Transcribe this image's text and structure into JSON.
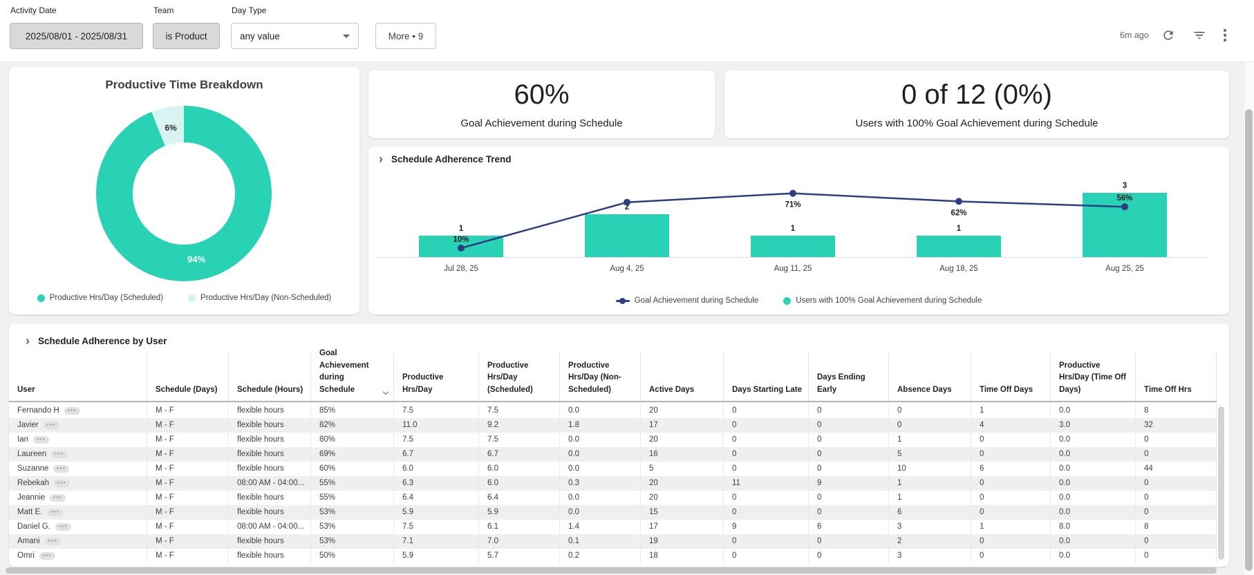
{
  "filter_bar": {
    "filters": [
      {
        "label": "Activity Date",
        "value": "2025/08/01 - 2025/08/31"
      },
      {
        "label": "Team",
        "value": "is Product"
      },
      {
        "label": "Day Type",
        "value": "any value"
      }
    ],
    "more_label": "More • 9",
    "last_updated": "6m ago",
    "icons": {
      "refresh": "refresh-icon",
      "filter": "filter-list-icon",
      "menu": "kebab-menu-icon"
    }
  },
  "donut": {
    "title": "Productive Time Breakdown",
    "labels": {
      "big": "94%",
      "small": "6%"
    },
    "legend": [
      "Productive Hrs/Day (Scheduled)",
      "Productive Hrs/Day (Non-Scheduled)"
    ]
  },
  "kpis": [
    {
      "value": "60%",
      "label": "Goal Achievement during Schedule"
    },
    {
      "value": "0 of 12 (0%)",
      "label": "Users with 100% Goal Achievement during Schedule"
    }
  ],
  "trend": {
    "title": "Schedule Adherence Trend",
    "legend": [
      {
        "name": "Goal Achievement during Schedule",
        "type": "line",
        "color": "#2c3e83"
      },
      {
        "name": "Users with 100% Goal Achievement during Schedule",
        "type": "bar",
        "color": "#29d2b4"
      }
    ]
  },
  "table": {
    "title": "Schedule Adherence by User",
    "columns": [
      {
        "label": "User"
      },
      {
        "label": "Schedule (Days)"
      },
      {
        "label": "Schedule (Hours)"
      },
      {
        "label": "Goal Achievement during Schedule",
        "sort": "desc"
      },
      {
        "label": "Productive Hrs/Day"
      },
      {
        "label": "Productive Hrs/Day (Scheduled)"
      },
      {
        "label": "Productive Hrs/Day (Non-Scheduled)"
      },
      {
        "label": "Active Days"
      },
      {
        "label": "Days Starting Late"
      },
      {
        "label": "Days Ending Early"
      },
      {
        "label": "Absence Days"
      },
      {
        "label": "Time Off Days"
      },
      {
        "label": "Productive Hrs/Day (Time Off Days)"
      },
      {
        "label": "Time Off Hrs"
      }
    ],
    "rows": [
      {
        "user": "Fernando H",
        "cells": [
          "M - F",
          "flexible hours",
          "85%",
          "7.5",
          "7.5",
          "0.0",
          "20",
          "0",
          "0",
          "0",
          "1",
          "0.0",
          "8"
        ]
      },
      {
        "user": "Javier",
        "cells": [
          "M - F",
          "flexible hours",
          "82%",
          "11.0",
          "9.2",
          "1.8",
          "17",
          "0",
          "0",
          "0",
          "4",
          "3.0",
          "32"
        ]
      },
      {
        "user": "Ian",
        "cells": [
          "M - F",
          "flexible hours",
          "80%",
          "7.5",
          "7.5",
          "0.0",
          "20",
          "0",
          "0",
          "1",
          "0",
          "0.0",
          "0"
        ]
      },
      {
        "user": "Laureen",
        "cells": [
          "M - F",
          "flexible hours",
          "69%",
          "6.7",
          "6.7",
          "0.0",
          "16",
          "0",
          "0",
          "5",
          "0",
          "0.0",
          "0"
        ]
      },
      {
        "user": "Suzanne",
        "cells": [
          "M - F",
          "flexible hours",
          "60%",
          "6.0",
          "6.0",
          "0.0",
          "5",
          "0",
          "0",
          "10",
          "6",
          "0.0",
          "44"
        ]
      },
      {
        "user": "Rebekah",
        "cells": [
          "M - F",
          "08:00 AM - 04:00...",
          "55%",
          "6.3",
          "6.0",
          "0.3",
          "20",
          "11",
          "9",
          "1",
          "0",
          "0.0",
          "0"
        ]
      },
      {
        "user": "Jeannie",
        "cells": [
          "M - F",
          "flexible hours",
          "55%",
          "6.4",
          "6.4",
          "0.0",
          "20",
          "0",
          "0",
          "1",
          "0",
          "0.0",
          "0"
        ]
      },
      {
        "user": "Matt E.",
        "cells": [
          "M - F",
          "flexible hours",
          "53%",
          "5.9",
          "5.9",
          "0.0",
          "15",
          "0",
          "0",
          "6",
          "0",
          "0.0",
          "0"
        ]
      },
      {
        "user": "Daniel G.",
        "cells": [
          "M - F",
          "08:00 AM - 04:00...",
          "53%",
          "7.5",
          "6.1",
          "1.4",
          "17",
          "9",
          "6",
          "3",
          "1",
          "8.0",
          "8"
        ]
      },
      {
        "user": "Amani",
        "cells": [
          "M - F",
          "flexible hours",
          "53%",
          "7.1",
          "7.0",
          "0.1",
          "19",
          "0",
          "0",
          "2",
          "0",
          "0.0",
          "0"
        ]
      },
      {
        "user": "Omri",
        "cells": [
          "M - F",
          "flexible hours",
          "50%",
          "5.9",
          "5.7",
          "0.2",
          "18",
          "0",
          "0",
          "3",
          "0",
          "0.0",
          "0"
        ]
      }
    ]
  },
  "chart_data": [
    {
      "type": "pie",
      "title": "Productive Time Breakdown",
      "donut": true,
      "labels": [
        "Productive Hrs/Day (Scheduled)",
        "Productive Hrs/Day (Non-Scheduled)"
      ],
      "values": [
        94,
        6
      ],
      "unit": "%",
      "colors": [
        "#29d2b4",
        "#d8f4f2"
      ],
      "legend_position": "bottom"
    },
    {
      "type": "bar+line",
      "title": "Schedule Adherence Trend",
      "categories": [
        "Jul 28, 25",
        "Aug 4, 25",
        "Aug 11, 25",
        "Aug 18, 25",
        "Aug 25, 25"
      ],
      "series": [
        {
          "name": "Goal Achievement during Schedule",
          "type": "line",
          "unit": "%",
          "values": [
            10,
            61,
            71,
            62,
            56
          ],
          "labels_shown": [
            "10%",
            null,
            "71%",
            "62%",
            "56%"
          ],
          "color": "#2c3e83"
        },
        {
          "name": "Users with 100% Goal Achievement during Schedule",
          "type": "bar",
          "values": [
            1,
            2,
            1,
            1,
            3
          ],
          "labels_shown": [
            "1",
            "2",
            "1",
            "1",
            "3"
          ],
          "color": "#29d2b4"
        }
      ],
      "ylim_line_pct": [
        0,
        100
      ],
      "grid": false,
      "legend_position": "bottom"
    }
  ]
}
